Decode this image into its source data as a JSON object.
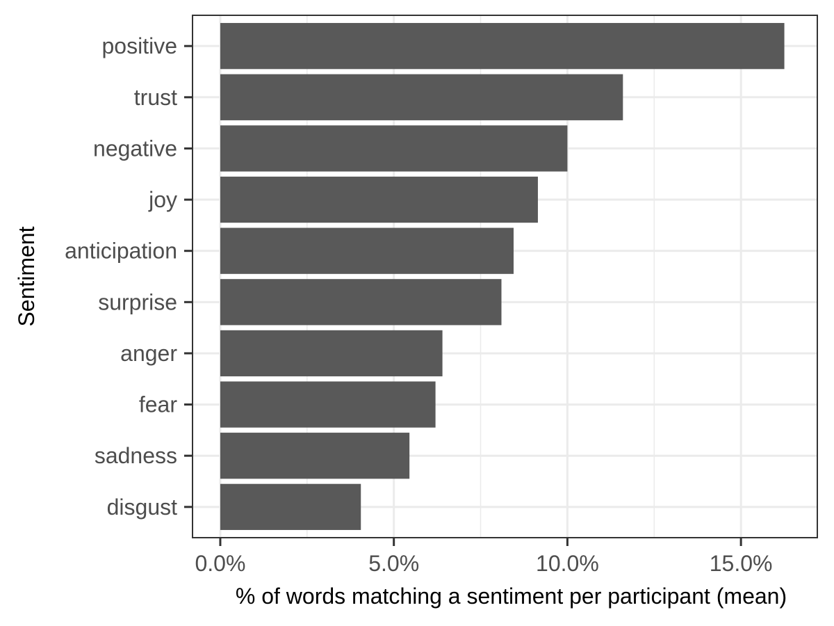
{
  "chart_data": {
    "type": "bar",
    "orientation": "horizontal",
    "categories": [
      "positive",
      "trust",
      "negative",
      "joy",
      "anticipation",
      "surprise",
      "anger",
      "fear",
      "sadness",
      "disgust"
    ],
    "values": [
      16.25,
      11.6,
      10.0,
      9.15,
      8.45,
      8.1,
      6.4,
      6.2,
      5.45,
      4.05
    ],
    "xlabel": "% of words matching a sentiment per participant (mean)",
    "ylabel": "Sentiment",
    "xlim": [
      -0.8,
      17.2
    ],
    "x_ticks": [
      0,
      5,
      10,
      15
    ],
    "x_tick_labels": [
      "0.0%",
      "5.0%",
      "10.0%",
      "15.0%"
    ],
    "grid": true,
    "bar_color": "#595959",
    "grid_color": "#ebebeb",
    "frame_color": "#333333"
  }
}
